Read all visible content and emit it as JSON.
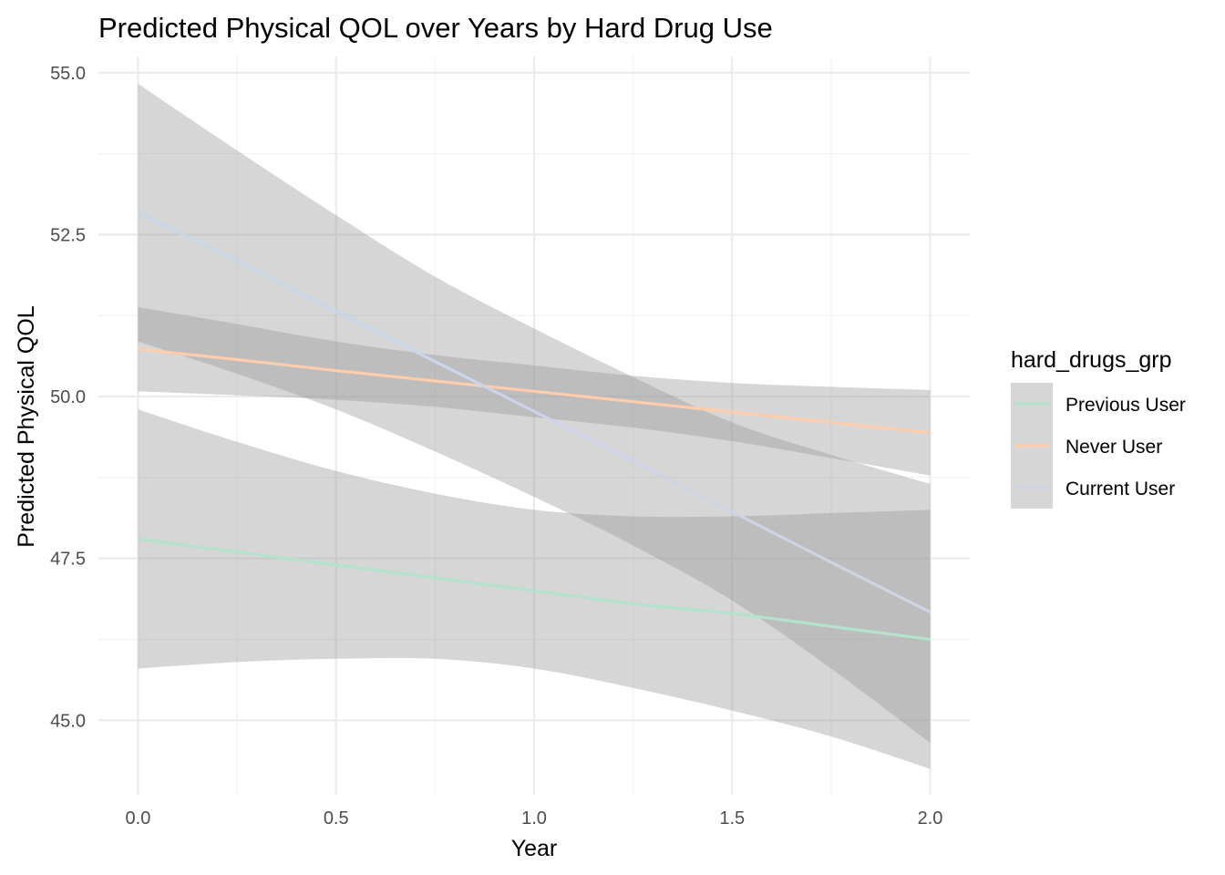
{
  "chart_data": {
    "type": "line",
    "title": "Predicted Physical QOL over Years by Hard Drug Use",
    "xlabel": "Year",
    "ylabel": "Predicted Physical QOL",
    "xlim": [
      -0.1,
      2.1
    ],
    "ylim": [
      43.85,
      55.25
    ],
    "x_ticks": [
      0.0,
      0.5,
      1.0,
      1.5,
      2.0
    ],
    "x_tick_labels": [
      "0.0",
      "0.5",
      "1.0",
      "1.5",
      "2.0"
    ],
    "y_ticks": [
      45.0,
      47.5,
      50.0,
      52.5,
      55.0
    ],
    "y_tick_labels": [
      "45.0",
      "47.5",
      "50.0",
      "52.5",
      "55.0"
    ],
    "grid": true,
    "legend": {
      "title": "hard_drugs_grp",
      "position": "right",
      "entries": [
        "Previous User",
        "Never User",
        "Current User"
      ]
    },
    "ribbon_color": "#999999",
    "x": [
      0.0,
      0.25,
      0.5,
      0.75,
      1.0,
      1.25,
      1.5,
      1.75,
      2.0
    ],
    "series": [
      {
        "name": "Previous User",
        "color": "#b3e2cd",
        "values": [
          47.8,
          47.6,
          47.4,
          47.2,
          47.0,
          46.8,
          46.65,
          46.45,
          46.25
        ],
        "lower": [
          45.8,
          45.9,
          45.95,
          45.95,
          45.8,
          45.5,
          45.15,
          44.75,
          44.25
        ],
        "upper": [
          49.8,
          49.3,
          48.85,
          48.5,
          48.25,
          48.15,
          48.15,
          48.2,
          48.25
        ]
      },
      {
        "name": "Never User",
        "color": "#fdcdac",
        "values": [
          50.73,
          50.57,
          50.4,
          50.24,
          50.08,
          49.92,
          49.76,
          49.6,
          49.44
        ],
        "lower": [
          50.08,
          50.02,
          49.95,
          49.84,
          49.68,
          49.52,
          49.31,
          49.05,
          48.78
        ],
        "upper": [
          51.38,
          51.12,
          50.85,
          50.64,
          50.48,
          50.32,
          50.21,
          50.15,
          50.1
        ]
      },
      {
        "name": "Current User",
        "color": "#cbd5e8",
        "values": [
          52.84,
          52.1,
          51.31,
          50.54,
          49.77,
          49.0,
          48.22,
          47.44,
          46.67
        ],
        "lower": [
          50.85,
          50.35,
          49.8,
          49.15,
          48.45,
          47.7,
          46.85,
          45.8,
          44.65
        ],
        "upper": [
          54.83,
          53.8,
          52.8,
          51.85,
          51.05,
          50.3,
          49.6,
          49.1,
          48.65
        ]
      }
    ]
  }
}
